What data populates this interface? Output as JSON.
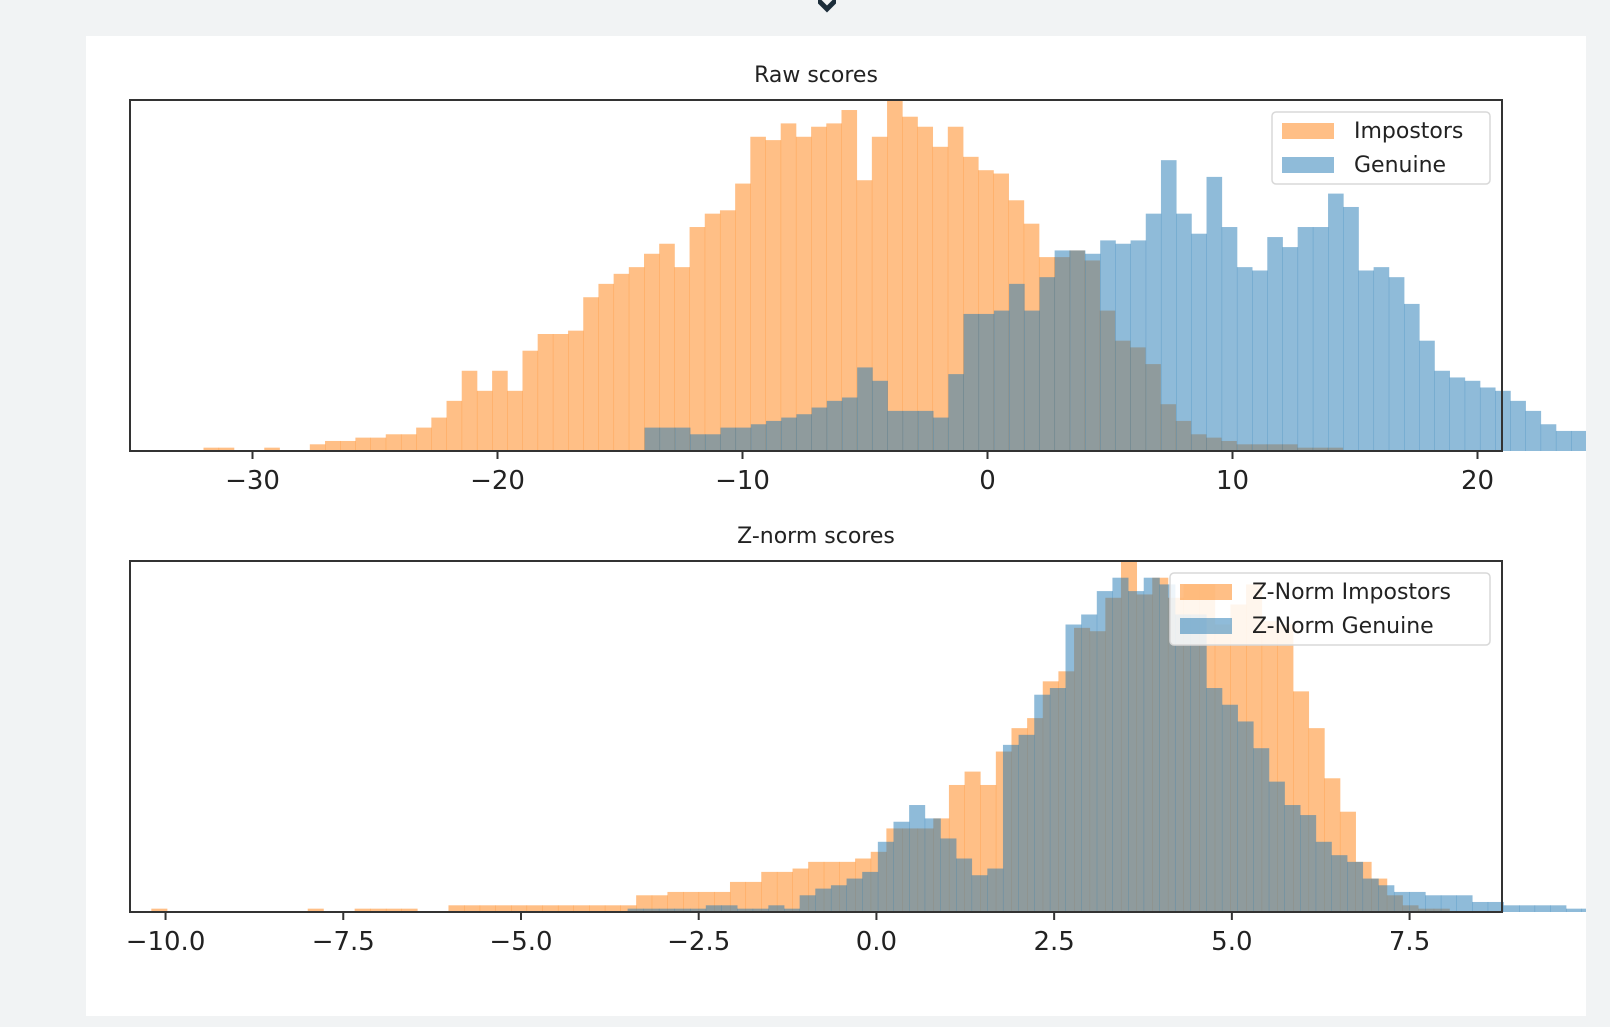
{
  "chart_data": [
    {
      "type": "histogram",
      "title": "Raw scores",
      "xlim": [
        -35,
        21
      ],
      "xticks": [
        -30,
        -20,
        -10,
        0,
        10,
        20
      ],
      "xtick_labels": [
        "−30",
        "−20",
        "−10",
        "0",
        "10",
        "20"
      ],
      "y_axis_visible": false,
      "legend_position": "upper right",
      "ylim": [
        0,
        105
      ],
      "series": [
        {
          "name": "Impostors",
          "color": "#ff7f0e",
          "bin_start": -32.0,
          "bin_width": 0.62,
          "counts": [
            1,
            1,
            0,
            0,
            1,
            0,
            0,
            2,
            3,
            3,
            4,
            4,
            5,
            5,
            7,
            10,
            15,
            24,
            18,
            24,
            18,
            30,
            35,
            35,
            36,
            46,
            50,
            53,
            55,
            59,
            62,
            55,
            67,
            71,
            72,
            80,
            94,
            93,
            98,
            94,
            97,
            98,
            102,
            81,
            94,
            105,
            100,
            97,
            91,
            97,
            88,
            84,
            83,
            75,
            68,
            58,
            58,
            60,
            57,
            42,
            33,
            31,
            26,
            14,
            9,
            5,
            4,
            3,
            2,
            2,
            2,
            2,
            1,
            1,
            1,
            0,
            0,
            0,
            0,
            0,
            0
          ]
        },
        {
          "name": "Genuine",
          "color": "#1f77b4",
          "bin_start": -14.0,
          "bin_width": 0.62,
          "counts": [
            7,
            7,
            7,
            5,
            5,
            7,
            7,
            8,
            9,
            10,
            11,
            13,
            15,
            16,
            25,
            21,
            12,
            12,
            12,
            10,
            23,
            41,
            41,
            42,
            50,
            42,
            52,
            60,
            60,
            59,
            63,
            62,
            63,
            71,
            87,
            71,
            65,
            82,
            67,
            55,
            54,
            64,
            61,
            67,
            67,
            77,
            73,
            54,
            55,
            52,
            44,
            33,
            24,
            22,
            21,
            19,
            18,
            15,
            12,
            8,
            6,
            6,
            3,
            2,
            2,
            2,
            1,
            1,
            0,
            1,
            1,
            1
          ]
        }
      ]
    },
    {
      "type": "histogram",
      "title": "Z-norm scores",
      "xlim": [
        -10.5,
        8.8
      ],
      "xticks": [
        -10.0,
        -7.5,
        -5.0,
        -2.5,
        0.0,
        2.5,
        5.0,
        7.5
      ],
      "xtick_labels": [
        "−10.0",
        "−7.5",
        "−5.0",
        "−2.5",
        "0.0",
        "2.5",
        "5.0",
        "7.5"
      ],
      "y_axis_visible": false,
      "legend_position": "upper right",
      "ylim": [
        0,
        105
      ],
      "series": [
        {
          "name": "Z-Norm Impostors",
          "color": "#ff7f0e",
          "bin_start": -10.2,
          "bin_width": 0.22,
          "counts": [
            1,
            0,
            0,
            0,
            0,
            0,
            0,
            0,
            0,
            0,
            1,
            0,
            0,
            1,
            1,
            1,
            1,
            0,
            0,
            2,
            2,
            2,
            2,
            2,
            2,
            2,
            2,
            2,
            2,
            2,
            2,
            5,
            5,
            6,
            6,
            6,
            6,
            9,
            9,
            12,
            12,
            13,
            15,
            15,
            15,
            16,
            18,
            25,
            25,
            25,
            28,
            38,
            42,
            38,
            48,
            55,
            58,
            69,
            72,
            85,
            84,
            94,
            105,
            95,
            100,
            94,
            98,
            98,
            86,
            92,
            98,
            87,
            86,
            66,
            55,
            40,
            30,
            15,
            10,
            5,
            2,
            1,
            1,
            0
          ]
        },
        {
          "name": "Z-Norm Genuine",
          "color": "#1f77b4",
          "bin_start": -3.5,
          "bin_width": 0.22,
          "counts": [
            1,
            1,
            1,
            1,
            1,
            2,
            2,
            1,
            1,
            2,
            1,
            5,
            7,
            8,
            10,
            12,
            21,
            27,
            32,
            28,
            22,
            16,
            11,
            13,
            50,
            53,
            65,
            67,
            86,
            89,
            96,
            100,
            96,
            100,
            98,
            89,
            89,
            67,
            62,
            57,
            49,
            39,
            32,
            29,
            21,
            17,
            15,
            10,
            8,
            6,
            6,
            5,
            5,
            5,
            3,
            3,
            2,
            2,
            2,
            2,
            1,
            1,
            1,
            1,
            1,
            1,
            1,
            1,
            1,
            3,
            1,
            1,
            1
          ]
        }
      ]
    }
  ]
}
